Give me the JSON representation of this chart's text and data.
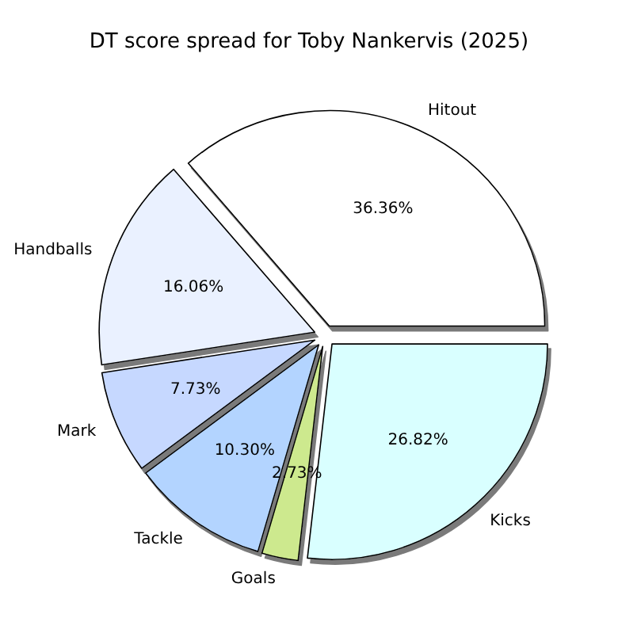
{
  "chart_data": {
    "type": "pie",
    "title": "DT score spread for Toby Nankervis (2025)",
    "categories": [
      "Hitout",
      "Handballs",
      "Mark",
      "Tackle",
      "Goals",
      "Kicks"
    ],
    "values": [
      36.36,
      16.06,
      7.73,
      10.3,
      2.73,
      26.82
    ],
    "colors": [
      "#ffffff",
      "#eaf1ff",
      "#c6d8ff",
      "#b3d4ff",
      "#cde98e",
      "#d9ffff"
    ],
    "value_labels": [
      "36.36%",
      "16.06%",
      "7.73%",
      "10.30%",
      "2.73%",
      "26.82%"
    ]
  }
}
